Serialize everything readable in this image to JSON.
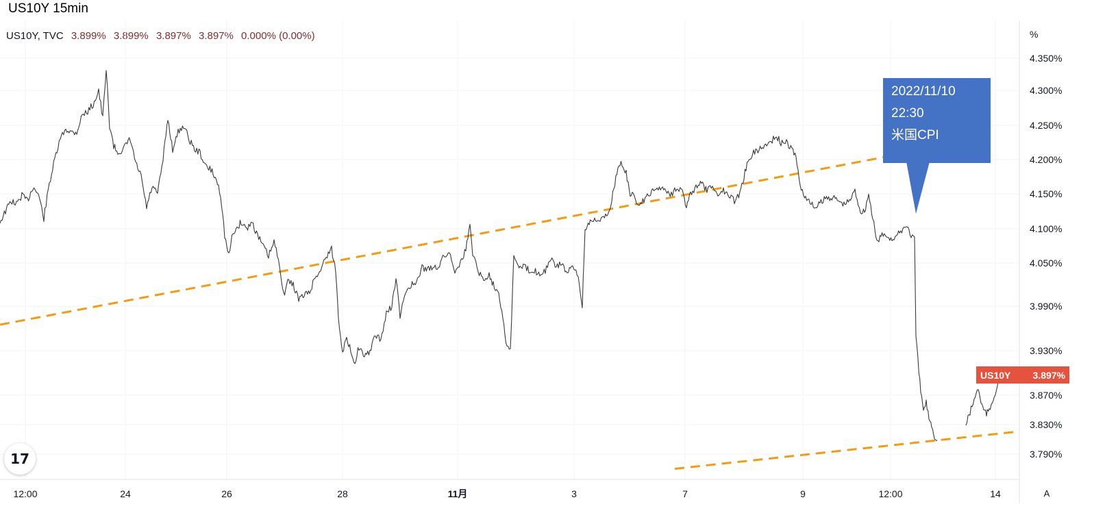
{
  "page_title": "US10Y 15min",
  "legend": {
    "symbol": "US10Y, TVC",
    "open": "3.899%",
    "high": "3.899%",
    "low": "3.897%",
    "close": "3.897%",
    "change": "0.000% (0.00%)"
  },
  "price_tag": {
    "symbol": "US10Y",
    "value": "3.897%"
  },
  "callout": {
    "line1": "2022/11/10",
    "line2": "22:30",
    "line3": "米国CPI"
  },
  "logo_text": "17",
  "auto_button": "A",
  "colors": {
    "candle": "#3a3a3a",
    "trendline": "#f39c12",
    "price_tag": "#e5533e",
    "callout": "#4472c4"
  },
  "chart_data": {
    "type": "line",
    "title": "US10Y 15min",
    "y_unit": "%",
    "y_ticks": [
      "4.350%",
      "4.300%",
      "4.250%",
      "4.200%",
      "4.150%",
      "4.100%",
      "4.050%",
      "3.990%",
      "3.930%",
      "3.870%",
      "3.830%",
      "3.790%"
    ],
    "x_ticks": [
      {
        "label": "12:00",
        "bold": false
      },
      {
        "label": "24",
        "bold": false
      },
      {
        "label": "26",
        "bold": false
      },
      {
        "label": "28",
        "bold": false
      },
      {
        "label": "11月",
        "bold": true
      },
      {
        "label": "3",
        "bold": false
      },
      {
        "label": "7",
        "bold": false
      },
      {
        "label": "9",
        "bold": false
      },
      {
        "label": "12:00",
        "bold": false
      },
      {
        "label": "14",
        "bold": false
      }
    ],
    "series": [
      {
        "values": [
          [
            0,
            4.11
          ],
          [
            8,
            4.125
          ],
          [
            16,
            4.14
          ],
          [
            24,
            4.135
          ],
          [
            32,
            4.148
          ],
          [
            40,
            4.14
          ],
          [
            48,
            4.16
          ],
          [
            56,
            4.15
          ],
          [
            64,
            4.115
          ],
          [
            72,
            4.165
          ],
          [
            80,
            4.2
          ],
          [
            88,
            4.23
          ],
          [
            96,
            4.245
          ],
          [
            104,
            4.24
          ],
          [
            112,
            4.24
          ],
          [
            120,
            4.265
          ],
          [
            128,
            4.27
          ],
          [
            136,
            4.28
          ],
          [
            144,
            4.3
          ],
          [
            150,
            4.26
          ],
          [
            155,
            4.33
          ],
          [
            160,
            4.25
          ],
          [
            166,
            4.22
          ],
          [
            172,
            4.21
          ],
          [
            180,
            4.215
          ],
          [
            190,
            4.23
          ],
          [
            198,
            4.195
          ],
          [
            206,
            4.175
          ],
          [
            214,
            4.13
          ],
          [
            222,
            4.16
          ],
          [
            230,
            4.15
          ],
          [
            238,
            4.2
          ],
          [
            245,
            4.26
          ],
          [
            252,
            4.215
          ],
          [
            260,
            4.24
          ],
          [
            268,
            4.25
          ],
          [
            276,
            4.23
          ],
          [
            284,
            4.215
          ],
          [
            292,
            4.21
          ],
          [
            300,
            4.19
          ],
          [
            308,
            4.185
          ],
          [
            316,
            4.17
          ],
          [
            322,
            4.15
          ],
          [
            328,
            4.09
          ],
          [
            334,
            4.06
          ],
          [
            340,
            4.095
          ],
          [
            346,
            4.1
          ],
          [
            352,
            4.11
          ],
          [
            360,
            4.1
          ],
          [
            368,
            4.11
          ],
          [
            376,
            4.09
          ],
          [
            384,
            4.075
          ],
          [
            392,
            4.06
          ],
          [
            400,
            4.08
          ],
          [
            408,
            4.05
          ],
          [
            414,
            4.005
          ],
          [
            420,
            4.025
          ],
          [
            428,
            4.02
          ],
          [
            436,
            4.0
          ],
          [
            444,
            4.005
          ],
          [
            452,
            4.01
          ],
          [
            460,
            4.03
          ],
          [
            468,
            4.04
          ],
          [
            476,
            4.06
          ],
          [
            484,
            4.07
          ],
          [
            490,
            4.04
          ],
          [
            494,
            3.975
          ],
          [
            500,
            3.93
          ],
          [
            506,
            3.945
          ],
          [
            512,
            3.93
          ],
          [
            518,
            3.915
          ],
          [
            524,
            3.935
          ],
          [
            532,
            3.92
          ],
          [
            540,
            3.93
          ],
          [
            548,
            3.95
          ],
          [
            556,
            3.945
          ],
          [
            564,
            3.98
          ],
          [
            572,
            3.99
          ],
          [
            578,
            4.03
          ],
          [
            584,
            3.975
          ],
          [
            592,
            4.01
          ],
          [
            600,
            4.02
          ],
          [
            608,
            4.02
          ],
          [
            616,
            4.045
          ],
          [
            624,
            4.04
          ],
          [
            632,
            4.045
          ],
          [
            640,
            4.045
          ],
          [
            648,
            4.06
          ],
          [
            656,
            4.065
          ],
          [
            664,
            4.04
          ],
          [
            672,
            4.05
          ],
          [
            680,
            4.07
          ],
          [
            686,
            4.105
          ],
          [
            690,
            4.065
          ],
          [
            698,
            4.04
          ],
          [
            706,
            4.025
          ],
          [
            714,
            4.035
          ],
          [
            720,
            4.02
          ],
          [
            728,
            4.01
          ],
          [
            734,
            3.975
          ],
          [
            740,
            3.935
          ],
          [
            745,
            3.93
          ],
          [
            750,
            4.06
          ],
          [
            756,
            4.045
          ],
          [
            764,
            4.045
          ],
          [
            772,
            4.04
          ],
          [
            780,
            4.04
          ],
          [
            788,
            4.035
          ],
          [
            796,
            4.04
          ],
          [
            804,
            4.055
          ],
          [
            812,
            4.045
          ],
          [
            820,
            4.05
          ],
          [
            828,
            4.035
          ],
          [
            836,
            4.045
          ],
          [
            844,
            4.03
          ],
          [
            850,
            3.99
          ],
          [
            854,
            4.1
          ],
          [
            860,
            4.11
          ],
          [
            868,
            4.115
          ],
          [
            876,
            4.11
          ],
          [
            884,
            4.12
          ],
          [
            890,
            4.125
          ],
          [
            896,
            4.16
          ],
          [
            902,
            4.185
          ],
          [
            908,
            4.195
          ],
          [
            914,
            4.18
          ],
          [
            920,
            4.15
          ],
          [
            926,
            4.145
          ],
          [
            932,
            4.135
          ],
          [
            940,
            4.14
          ],
          [
            948,
            4.15
          ],
          [
            956,
            4.155
          ],
          [
            964,
            4.16
          ],
          [
            972,
            4.155
          ],
          [
            980,
            4.15
          ],
          [
            988,
            4.16
          ],
          [
            996,
            4.155
          ],
          [
            1002,
            4.13
          ],
          [
            1008,
            4.15
          ],
          [
            1016,
            4.16
          ],
          [
            1024,
            4.165
          ],
          [
            1032,
            4.155
          ],
          [
            1040,
            4.16
          ],
          [
            1048,
            4.15
          ],
          [
            1056,
            4.155
          ],
          [
            1064,
            4.15
          ],
          [
            1072,
            4.14
          ],
          [
            1080,
            4.15
          ],
          [
            1086,
            4.175
          ],
          [
            1092,
            4.2
          ],
          [
            1100,
            4.21
          ],
          [
            1108,
            4.215
          ],
          [
            1116,
            4.22
          ],
          [
            1124,
            4.225
          ],
          [
            1132,
            4.235
          ],
          [
            1140,
            4.225
          ],
          [
            1148,
            4.225
          ],
          [
            1156,
            4.215
          ],
          [
            1162,
            4.205
          ],
          [
            1168,
            4.16
          ],
          [
            1176,
            4.145
          ],
          [
            1184,
            4.135
          ],
          [
            1192,
            4.13
          ],
          [
            1200,
            4.14
          ],
          [
            1208,
            4.145
          ],
          [
            1216,
            4.145
          ],
          [
            1224,
            4.14
          ],
          [
            1232,
            4.135
          ],
          [
            1240,
            4.14
          ],
          [
            1248,
            4.155
          ],
          [
            1256,
            4.125
          ],
          [
            1262,
            4.125
          ],
          [
            1268,
            4.15
          ],
          [
            1274,
            4.115
          ],
          [
            1280,
            4.08
          ],
          [
            1286,
            4.09
          ],
          [
            1294,
            4.09
          ],
          [
            1302,
            4.085
          ],
          [
            1310,
            4.09
          ],
          [
            1318,
            4.1
          ],
          [
            1324,
            4.105
          ],
          [
            1330,
            4.09
          ],
          [
            1335,
            4.085
          ],
          [
            1337,
            3.95
          ],
          [
            1340,
            3.915
          ],
          [
            1344,
            3.875
          ],
          [
            1348,
            3.85
          ],
          [
            1352,
            3.86
          ],
          [
            1356,
            3.84
          ],
          [
            1360,
            3.83
          ],
          [
            1364,
            3.815
          ],
          [
            1368,
            3.808
          ],
          [
            1410,
            3.83
          ],
          [
            1428,
            3.88
          ],
          [
            1432,
            3.86
          ],
          [
            1436,
            3.85
          ],
          [
            1440,
            3.845
          ],
          [
            1444,
            3.848
          ],
          [
            1460,
            3.895
          ],
          [
            1468,
            3.896
          ],
          [
            1474,
            3.897
          ]
        ]
      }
    ],
    "annotations": [
      {
        "type": "trendline",
        "style": "dashed",
        "from": [
          0,
          3.965
        ],
        "to": [
          1298,
          4.205
        ]
      },
      {
        "type": "trendline",
        "style": "dashed",
        "from": [
          985,
          3.77
        ],
        "to": [
          1480,
          3.82
        ]
      }
    ],
    "last_price": "3.897%",
    "grid": true
  }
}
